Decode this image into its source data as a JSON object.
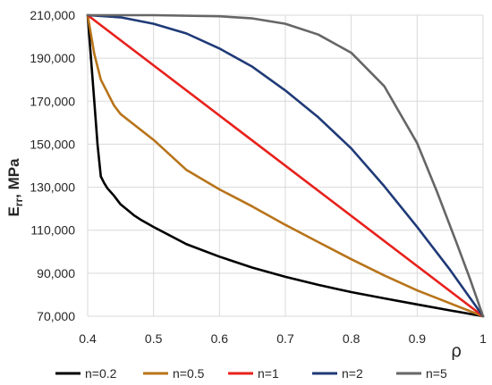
{
  "chart_data": {
    "type": "line",
    "title": "",
    "xlabel": "ρ",
    "ylabel": "E",
    "ylabel_sub": "rr",
    "ylabel_unit": ", MPa",
    "xlim": [
      0.4,
      1.0
    ],
    "ylim": [
      70000,
      210000
    ],
    "x_ticks": [
      0.4,
      0.5,
      0.6,
      0.7,
      0.8,
      0.9,
      1.0
    ],
    "x_tick_labels": [
      "0.4",
      "0.5",
      "0.6",
      "0.7",
      "0.8",
      "0.9",
      "1"
    ],
    "y_ticks": [
      70000,
      90000,
      110000,
      130000,
      150000,
      170000,
      190000,
      210000
    ],
    "y_tick_labels": [
      "70,000",
      "90,000",
      "110,000",
      "130,000",
      "150,000",
      "170,000",
      "190,000",
      "210,000"
    ],
    "grid": true,
    "legend_position": "bottom",
    "series": [
      {
        "name": "n=0.2",
        "color": "#000000",
        "x": [
          0.4,
          0.405,
          0.41,
          0.415,
          0.42,
          0.425,
          0.43,
          0.44,
          0.45,
          0.46,
          0.47,
          0.48,
          0.5,
          0.55,
          0.6,
          0.65,
          0.7,
          0.75,
          0.8,
          0.85,
          0.9,
          0.95,
          1.0
        ],
        "values": [
          210000,
          190000,
          170000,
          150000,
          135000,
          132000,
          129500,
          126000,
          122000,
          119500,
          117000,
          115000,
          111500,
          103500,
          97700,
          92600,
          88300,
          84600,
          81200,
          78300,
          75500,
          72700,
          70000
        ]
      },
      {
        "name": "n=0.5",
        "color": "#B8741A",
        "x": [
          0.4,
          0.41,
          0.42,
          0.43,
          0.44,
          0.45,
          0.5,
          0.55,
          0.6,
          0.65,
          0.7,
          0.75,
          0.8,
          0.85,
          0.9,
          0.95,
          1.0
        ],
        "values": [
          210000,
          192000,
          180000,
          174000,
          168000,
          164000,
          152000,
          138000,
          129000,
          121000,
          112500,
          104500,
          96500,
          89000,
          82000,
          76000,
          70000
        ]
      },
      {
        "name": "n=1",
        "color": "#E8211C",
        "x": [
          0.4,
          1.0
        ],
        "values": [
          210000,
          70000
        ]
      },
      {
        "name": "n=2",
        "color": "#1F3A77",
        "x": [
          0.4,
          0.45,
          0.5,
          0.55,
          0.6,
          0.65,
          0.7,
          0.75,
          0.8,
          0.85,
          0.9,
          0.95,
          1.0
        ],
        "values": [
          210000,
          209000,
          206000,
          201500,
          194500,
          186000,
          175000,
          162500,
          148000,
          130500,
          111500,
          91500,
          70000
        ]
      },
      {
        "name": "n=5",
        "color": "#666666",
        "x": [
          0.4,
          0.5,
          0.6,
          0.65,
          0.7,
          0.75,
          0.8,
          0.85,
          0.9,
          0.93,
          0.96,
          0.98,
          1.0
        ],
        "values": [
          210000,
          210000,
          209500,
          208500,
          206000,
          201000,
          192500,
          177000,
          150500,
          128000,
          104000,
          87500,
          70000
        ]
      }
    ]
  }
}
